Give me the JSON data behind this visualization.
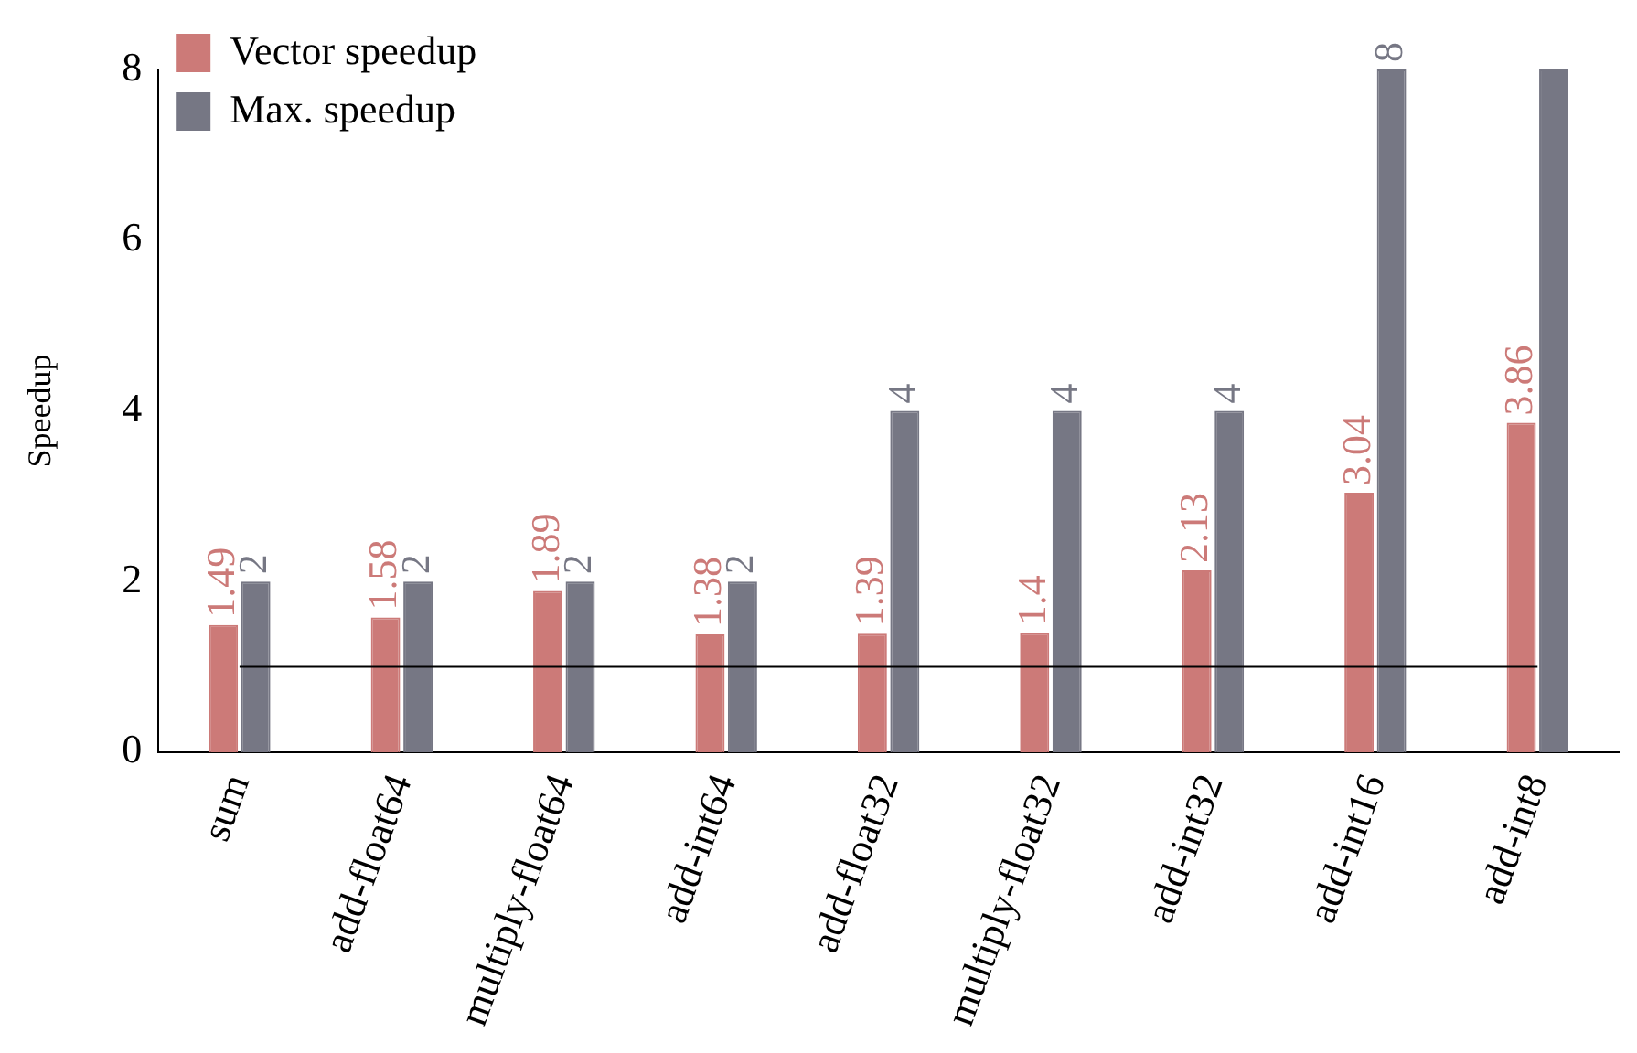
{
  "chart_data": {
    "type": "bar",
    "ylabel": "Speedup",
    "categories": [
      "sum",
      "add-float64",
      "multiply-float64",
      "add-int64",
      "add-float32",
      "multiply-float32",
      "add-int32",
      "add-int16",
      "add-int8"
    ],
    "series": [
      {
        "name": "Vector speedup",
        "color": "#cc7a78",
        "values": [
          1.49,
          1.58,
          1.89,
          1.38,
          1.39,
          1.4,
          2.13,
          3.04,
          3.86
        ],
        "value_labels": [
          "1.49",
          "1.58",
          "1.89",
          "1.38",
          "1.39",
          "1.4",
          "2.13",
          "3.04",
          "3.86"
        ]
      },
      {
        "name": "Max. speedup",
        "color": "#767784",
        "values": [
          2,
          2,
          2,
          2,
          4,
          4,
          4,
          8,
          8
        ],
        "value_labels": [
          "2",
          "2",
          "2",
          "2",
          "4",
          "4",
          "4",
          "8",
          null
        ]
      }
    ],
    "ylim": [
      0,
      8
    ],
    "yticks": [
      0,
      2,
      4,
      6,
      8
    ],
    "grid": false,
    "legend": "top left",
    "ref_lines": [
      {
        "axis": "y",
        "value": 1,
        "color": "#000000"
      }
    ]
  }
}
